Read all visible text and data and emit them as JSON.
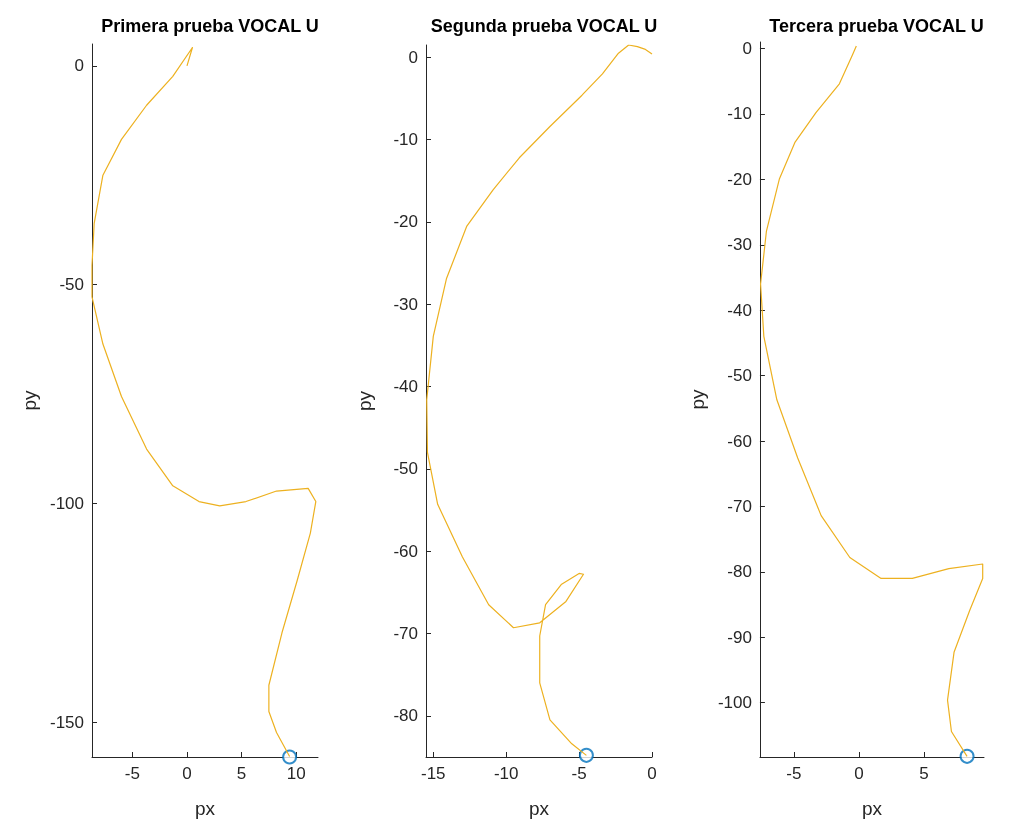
{
  "chart_data": [
    {
      "type": "line",
      "title": "Primera prueba VOCAL U",
      "xlabel": "px",
      "ylabel": "py",
      "xlim": [
        -8.7,
        12
      ],
      "ylim": [
        -158,
        5
      ],
      "xticks": [
        -5,
        0,
        5,
        10
      ],
      "yticks": [
        -150,
        -100,
        -50,
        0
      ],
      "series": [
        {
          "color": "#edb120",
          "x": [
            0,
            0.5,
            -1.3,
            -3.7,
            -6,
            -7.7,
            -8.5,
            -8.7,
            -8.7,
            -7.7,
            -6,
            -3.7,
            -1.3,
            1.1,
            3,
            5.4,
            8.2,
            11.1,
            11.8,
            11.3,
            10.1,
            8.7,
            7.5,
            7.5,
            8.2,
            9.4
          ],
          "values": [
            0,
            4.2,
            -2.4,
            -9,
            -16.8,
            -25,
            -36,
            -45.6,
            -52.8,
            -63.6,
            -75.6,
            -87.6,
            -96,
            -99.6,
            -100.6,
            -99.6,
            -97.2,
            -96.6,
            -99.6,
            -106.8,
            -117.6,
            -129.6,
            -141.6,
            -147.6,
            -152.4,
            -157.9
          ]
        },
        {
          "type": "scatter",
          "marker": "circle",
          "color": "#0072bd",
          "x": [
            9.4
          ],
          "values": [
            -158
          ]
        }
      ]
    },
    {
      "type": "line",
      "title": "Segunda prueba VOCAL U",
      "xlabel": "px",
      "ylabel": "py",
      "xlim": [
        -15.5,
        0
      ],
      "ylim": [
        -85,
        1.5
      ],
      "xticks": [
        -15,
        -10,
        -5,
        0
      ],
      "yticks": [
        -80,
        -70,
        -60,
        -50,
        -40,
        -30,
        -20,
        -10,
        0
      ],
      "series": [
        {
          "color": "#edb120",
          "x": [
            0,
            -0.5,
            -1,
            -1.6,
            -2.3,
            -3.4,
            -4.8,
            -7,
            -9.1,
            -10.9,
            -12.7,
            -14.1,
            -15,
            -15.45,
            -15.4,
            -14.7,
            -13,
            -11.2,
            -9.5,
            -7.7,
            -5.9,
            -4.7,
            -5,
            -6.2,
            -7.3,
            -7.7,
            -7.7,
            -7,
            -5.5,
            -4.5
          ],
          "values": [
            0.4,
            1,
            1.3,
            1.5,
            0.5,
            -2,
            -4.6,
            -8.4,
            -12.2,
            -16.1,
            -20.5,
            -26.9,
            -33.9,
            -41.6,
            -48,
            -54.3,
            -60.7,
            -66.5,
            -69.3,
            -68.7,
            -66.1,
            -62.8,
            -62.7,
            -64,
            -66.5,
            -70.3,
            -76,
            -80.5,
            -83.4,
            -84.8
          ]
        },
        {
          "type": "scatter",
          "marker": "circle",
          "color": "#0072bd",
          "x": [
            -4.5
          ],
          "values": [
            -84.8
          ]
        }
      ]
    },
    {
      "type": "line",
      "title": "Tercera prueba VOCAL U",
      "xlabel": "px",
      "ylabel": "py",
      "xlim": [
        -7.6,
        9.6
      ],
      "ylim": [
        -108.3,
        1
      ],
      "xticks": [
        -5,
        0,
        5
      ],
      "yticks": [
        -100,
        -90,
        -80,
        -70,
        -60,
        -50,
        -40,
        -30,
        -20,
        -10,
        0
      ],
      "series": [
        {
          "color": "#edb120",
          "x": [
            -0.2,
            -0.5,
            -1.5,
            -3.3,
            -4.9,
            -6.1,
            -7.1,
            -7.55,
            -7.3,
            -6.3,
            -4.7,
            -2.9,
            -0.7,
            1.7,
            4.1,
            6.9,
            9.5,
            9.5,
            8.5,
            7.3,
            6.8,
            7.1,
            8.3
          ],
          "values": [
            0.4,
            -1,
            -5.4,
            -9.8,
            -14.3,
            -19.9,
            -27.9,
            -36,
            -44,
            -53.7,
            -62.6,
            -71.4,
            -77.8,
            -81,
            -81,
            -79.5,
            -78.8,
            -81,
            -85.9,
            -92.3,
            -99.6,
            -104.4,
            -108.2
          ]
        },
        {
          "type": "scatter",
          "marker": "circle",
          "color": "#0072bd",
          "x": [
            8.3
          ],
          "values": [
            -108.2
          ]
        }
      ]
    }
  ]
}
